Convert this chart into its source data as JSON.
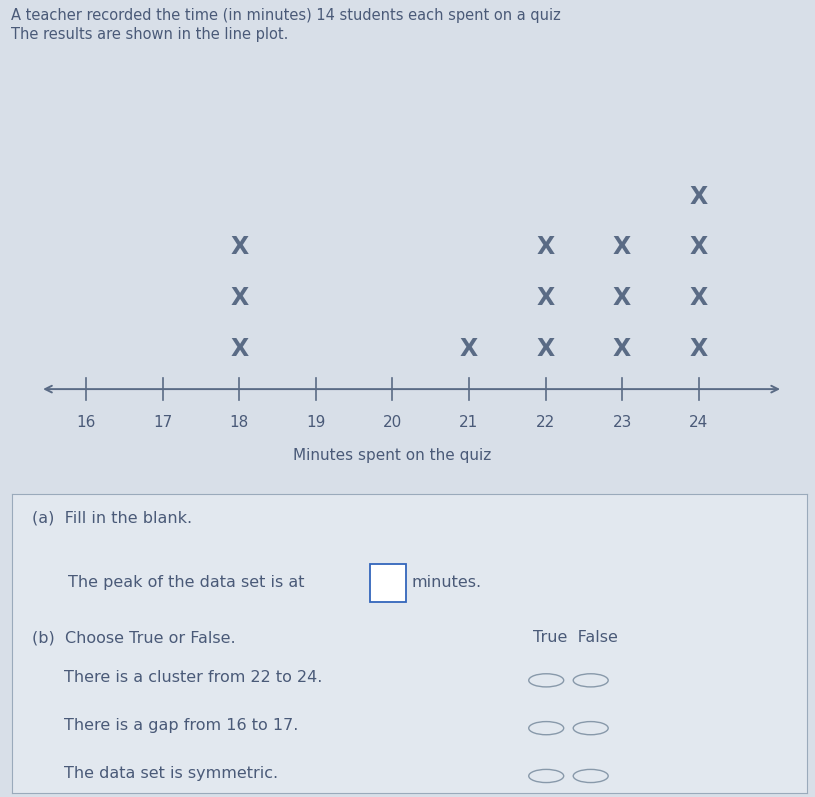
{
  "title_line1": "A teacher recorded the time (in minutes) 14 students each spent on a quiz",
  "title_line2": "The results are shown in the line plot.",
  "axis_label": "Minutes spent on the quiz",
  "x_min": 15.3,
  "x_max": 25.2,
  "tick_positions": [
    16,
    17,
    18,
    19,
    20,
    21,
    22,
    23,
    24
  ],
  "data": {
    "18": 3,
    "21": 1,
    "22": 3,
    "23": 3,
    "24": 4
  },
  "marker_color": "#5a6b85",
  "axis_color": "#5a6b85",
  "text_color": "#4a5a78",
  "bg_color": "#d8dfe8",
  "panel_bg": "#e2e8ef",
  "part_a_text": "(a)  Fill in the blank.",
  "part_a_sub": "The peak of the data set is at",
  "part_a_unit": "minutes.",
  "part_b_text": "(b)  Choose True or False.",
  "true_false_label": "True  False",
  "statement1": "There is a cluster from 22 to 24.",
  "statement2": "There is a gap from 16 to 17.",
  "statement3": "The data set is symmetric."
}
